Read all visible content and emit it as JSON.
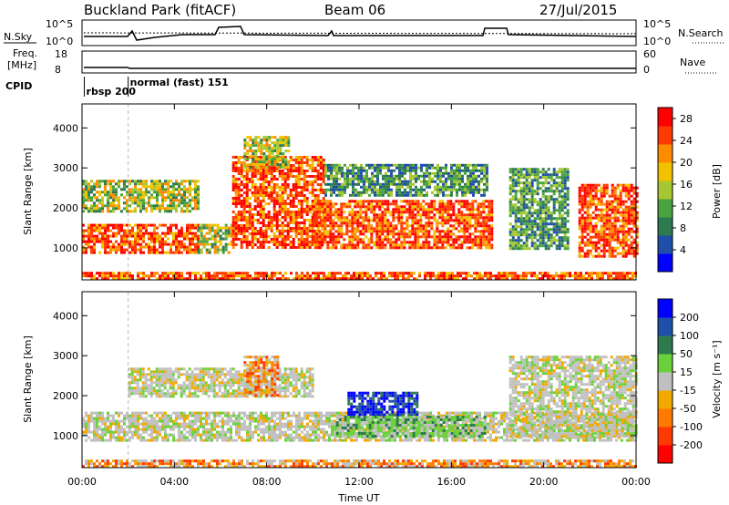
{
  "header": {
    "title": "Buckland Park (fitACF)",
    "beam": "Beam 06",
    "date": "27/Jul/2015"
  },
  "top_panels": {
    "nsky_label": "N.Sky",
    "nsearch_label": "N.Search",
    "count_ticks_left": [
      "10^5",
      "10^0"
    ],
    "count_ticks_right": [
      "10^5",
      "10^0"
    ],
    "freq_label_line1": "Freq.",
    "freq_label_line2": "[MHz]",
    "freq_ticks": [
      "18",
      "8"
    ],
    "nave_label": "Nave",
    "nave_ticks": [
      "60",
      "0"
    ],
    "cpid_label": "CPID",
    "cpid_modes": [
      {
        "label": "rbsp 200",
        "start_hour": 0.1
      },
      {
        "label": "normal (fast) 151",
        "start_hour": 2.0
      }
    ]
  },
  "chart_data": [
    {
      "type": "heatmap",
      "name": "power",
      "xlabel": "Time UT",
      "ylabel": "Slant Range [km]",
      "xlim": [
        0,
        24
      ],
      "ylim": [
        200,
        4600
      ],
      "yticks": [
        "1000",
        "2000",
        "3000",
        "4000"
      ],
      "xticks": [
        "00:00",
        "04:00",
        "08:00",
        "12:00",
        "16:00",
        "20:00",
        "00:00"
      ],
      "colorbar": {
        "label": "Power [dB]",
        "ticks": [
          "4",
          "8",
          "12",
          "16",
          "20",
          "24",
          "28"
        ],
        "range": [
          0,
          30
        ],
        "colors": [
          "#0000ff",
          "#1f4fa8",
          "#2e7a4f",
          "#4aa33f",
          "#a7c732",
          "#f2c200",
          "#ff8c00",
          "#ff3a00",
          "#ff0000"
        ]
      },
      "regions": [
        {
          "t0": 0.0,
          "t1": 5.0,
          "r0": 850,
          "r1": 1600,
          "level": "high"
        },
        {
          "t0": 0.0,
          "t1": 5.0,
          "r0": 1900,
          "r1": 2700,
          "level": "medium"
        },
        {
          "t0": 5.0,
          "t1": 6.5,
          "r0": 900,
          "r1": 1600,
          "level": "medium"
        },
        {
          "t0": 6.5,
          "t1": 10.5,
          "r0": 1000,
          "r1": 3300,
          "level": "high"
        },
        {
          "t0": 7.0,
          "t1": 9.0,
          "r0": 3000,
          "r1": 3800,
          "level": "medium"
        },
        {
          "t0": 10.0,
          "t1": 17.8,
          "r0": 1000,
          "r1": 2200,
          "level": "high"
        },
        {
          "t0": 10.5,
          "t1": 17.5,
          "r0": 2300,
          "r1": 3100,
          "level": "low"
        },
        {
          "t0": 18.5,
          "t1": 21.0,
          "r0": 1000,
          "r1": 3000,
          "level": "low"
        },
        {
          "t0": 21.5,
          "t1": 24.0,
          "r0": 800,
          "r1": 2600,
          "level": "high"
        },
        {
          "t0": 0.0,
          "t1": 24.0,
          "r0": 200,
          "r1": 400,
          "level": "high"
        }
      ]
    },
    {
      "type": "heatmap",
      "name": "velocity",
      "xlabel": "Time UT",
      "ylabel": "Slant Range [km]",
      "xlim": [
        0,
        24
      ],
      "ylim": [
        200,
        4600
      ],
      "yticks": [
        "1000",
        "2000",
        "3000",
        "4000"
      ],
      "xticks": [
        "00:00",
        "04:00",
        "08:00",
        "12:00",
        "16:00",
        "20:00",
        "00:00"
      ],
      "colorbar": {
        "label": "Velocity [m s⁻¹]",
        "ticks": [
          "200",
          "100",
          "50",
          "15",
          "-15",
          "-50",
          "-100",
          "-200"
        ],
        "colors": [
          "#0000ff",
          "#1f4fa8",
          "#2e7a4f",
          "#6ad13a",
          "#c0c0c0",
          "#f2a900",
          "#ff7a00",
          "#ff3a00",
          "#ff0000"
        ]
      },
      "regions": [
        {
          "t0": 0.0,
          "t1": 24.0,
          "r0": 900,
          "r1": 1600,
          "level": "gray"
        },
        {
          "t0": 2.0,
          "t1": 10.0,
          "r0": 2000,
          "r1": 2700,
          "level": "gray"
        },
        {
          "t0": 11.5,
          "t1": 14.5,
          "r0": 1500,
          "r1": 2100,
          "level": "blue"
        },
        {
          "t0": 11.0,
          "t1": 17.5,
          "r0": 1000,
          "r1": 1500,
          "level": "green"
        },
        {
          "t0": 7.0,
          "t1": 8.5,
          "r0": 2000,
          "r1": 3000,
          "level": "orange"
        },
        {
          "t0": 18.5,
          "t1": 24.0,
          "r0": 1000,
          "r1": 3000,
          "level": "gray"
        },
        {
          "t0": 0.0,
          "t1": 24.0,
          "r0": 200,
          "r1": 400,
          "level": "orange"
        }
      ]
    }
  ]
}
